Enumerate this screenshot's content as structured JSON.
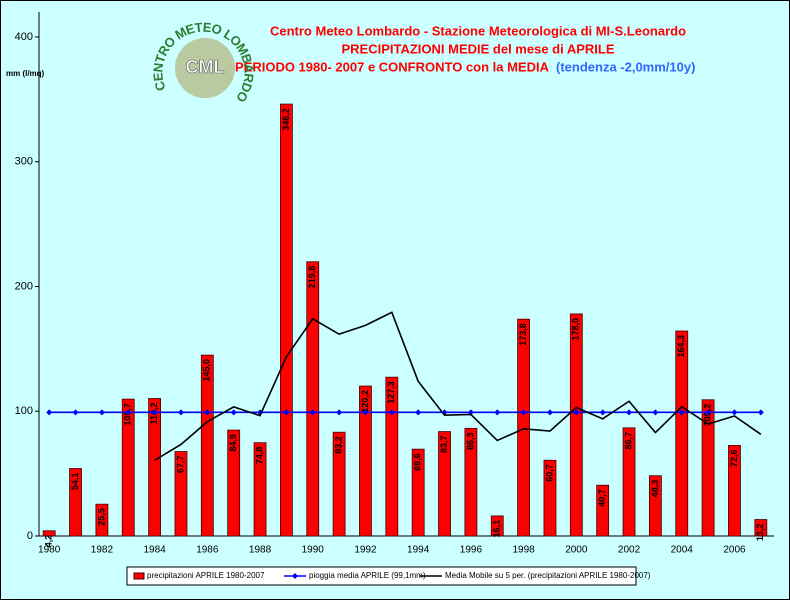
{
  "chart_data": {
    "type": "bar",
    "title": "Centro Meteo Lombardo - Stazione Meteorologica di MI-S.Leonardo",
    "subtitle": [
      "PRECIPITAZIONI MEDIE del mese di APRILE",
      "PERIODO 1980- 2007 e CONFRONTO con la MEDIA"
    ],
    "annotation": "(tendenza -2,0mm/10y)",
    "y_label": "mm (l/mq)",
    "logo": {
      "ring": "CENTRO METEO LOMBARDO",
      "center": "CML"
    },
    "categories": [
      1980,
      null,
      1982,
      null,
      1984,
      null,
      1986,
      null,
      1988,
      null,
      1990,
      null,
      1992,
      null,
      1994,
      null,
      1996,
      null,
      1998,
      null,
      2000,
      null,
      2002,
      null,
      2004,
      null,
      2006,
      null
    ],
    "series": [
      {
        "name": "precipitazioni APRILE 1980-2007",
        "type": "bar",
        "color": "#ff0000",
        "values": [
          4.2,
          54.1,
          25.5,
          109.7,
          110.2,
          67.7,
          145.0,
          84.9,
          74.8,
          346.2,
          219.8,
          83.2,
          120.2,
          127.3,
          69.6,
          83.7,
          86.3,
          16.1,
          173.8,
          60.7,
          178.0,
          40.7,
          86.7,
          48.3,
          164.3,
          109.2,
          72.6,
          13.2
        ],
        "value_labels": [
          "4,2",
          "54,1",
          "25,5",
          "109,7",
          "110,2",
          "67,7",
          "145,0",
          "84,9",
          "74,8",
          "346,2",
          "219,8",
          "83,2",
          "120,2",
          "127,3",
          "69,6",
          "83,7",
          "86,3",
          "16,1",
          "173,8",
          "60,7",
          "178,0",
          "40,7",
          "86,7",
          "48,3",
          "164,3",
          "109,2",
          "72,6",
          "13,2"
        ]
      },
      {
        "name": "pioggia media APRILE (99,1mm)",
        "type": "line",
        "markers": true,
        "color": "#0000ff",
        "values": [
          99.1,
          99.1,
          99.1,
          99.1,
          99.1,
          99.1,
          99.1,
          99.1,
          99.1,
          99.1,
          99.1,
          99.1,
          99.1,
          99.1,
          99.1,
          99.1,
          99.1,
          99.1,
          99.1,
          99.1,
          99.1,
          99.1,
          99.1,
          99.1,
          99.1,
          99.1,
          99.1,
          99.1
        ]
      },
      {
        "name": "Media Mobile su 5 per. (precipitazioni APRILE 1980-2007)",
        "type": "line",
        "markers": false,
        "color": "#000000",
        "values": [
          null,
          null,
          null,
          null,
          60.7,
          73.4,
          91.6,
          103.5,
          96.5,
          143.7,
          174.1,
          161.8,
          168.8,
          179.3,
          124.0,
          96.8,
          97.4,
          76.6,
          85.9,
          84.1,
          103.0,
          93.9,
          108.0,
          82.9,
          103.6,
          89.8,
          96.2,
          81.5
        ]
      }
    ],
    "ylim": [
      0,
      420
    ],
    "yticks": [
      0,
      100,
      200,
      300,
      400
    ],
    "legend": "bottom"
  }
}
